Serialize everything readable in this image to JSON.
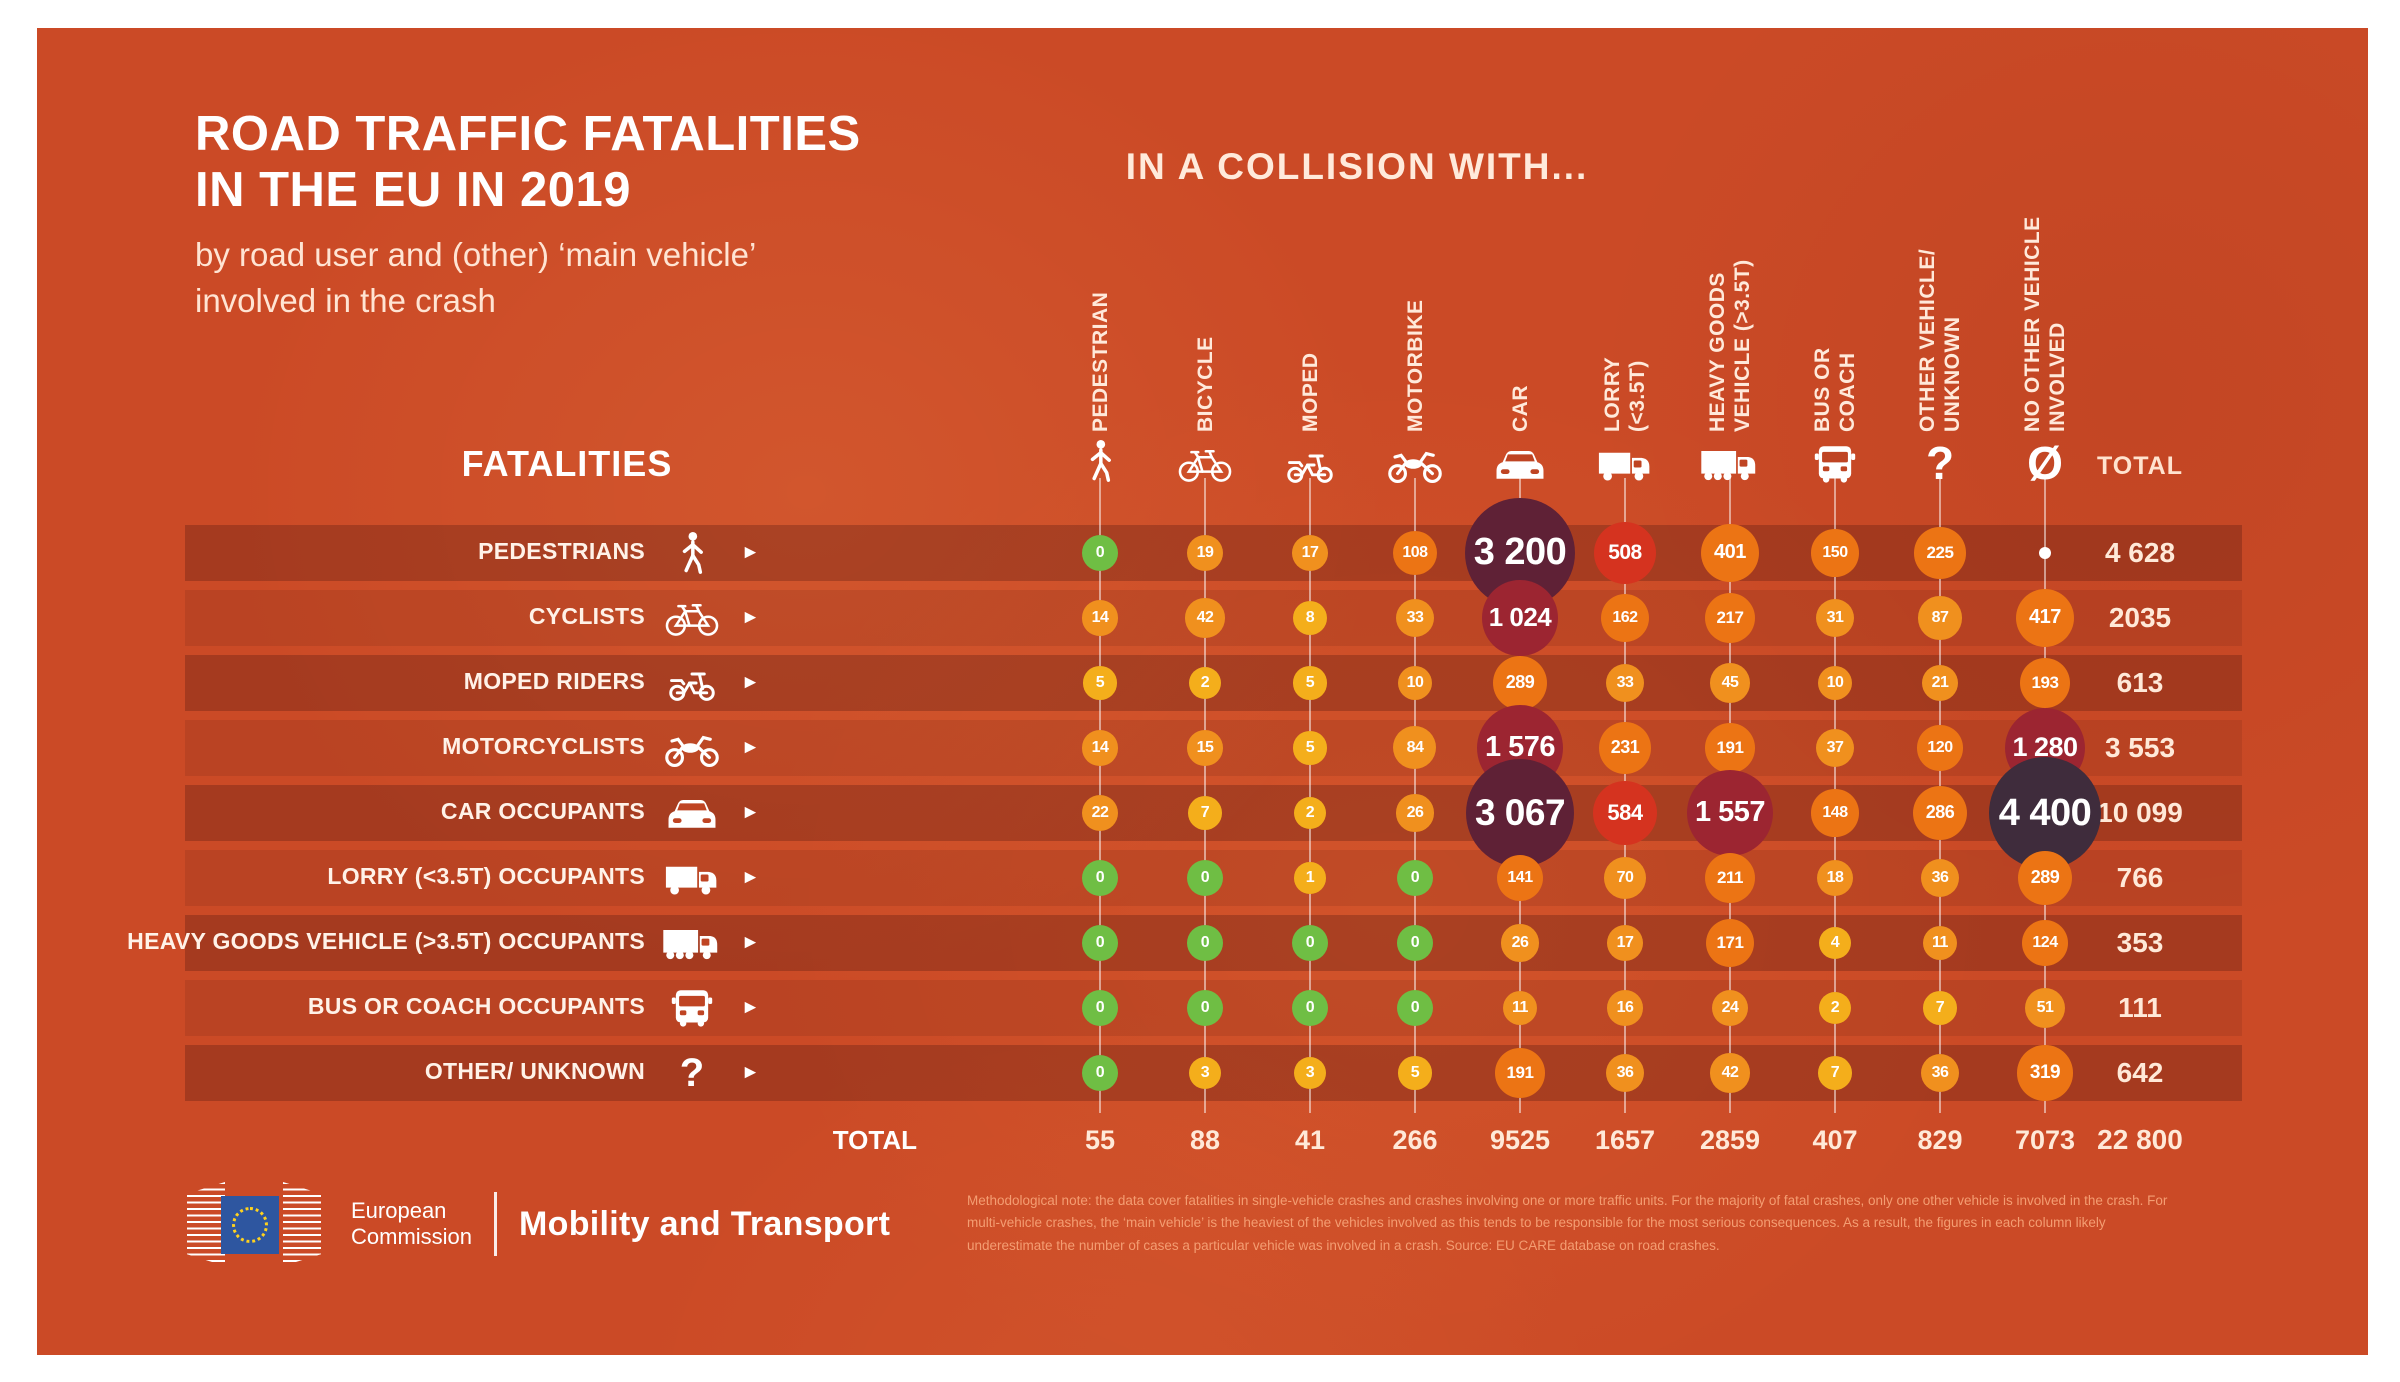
{
  "header": {
    "title_line1": "ROAD TRAFFIC FATALITIES",
    "title_line2": "IN THE EU IN 2019",
    "subtitle_line1": "by road user and (other) ‘main vehicle’",
    "subtitle_line2": "involved in the crash",
    "collision_label": "IN A COLLISION WITH...",
    "fatalities_label": "FATALITIES",
    "total_label": "TOTAL"
  },
  "chart_data": {
    "type": "heatmap",
    "variant": "bubble-matrix",
    "title": "Road traffic fatalities in the EU in 2019 by road user and (other) 'main vehicle' involved in the crash",
    "xlabel": "In a collision with...",
    "ylabel": "Fatalities",
    "columns": [
      {
        "label": "PEDESTRIAN",
        "icon": "pedestrian-icon"
      },
      {
        "label": "BICYCLE",
        "icon": "bicycle-icon"
      },
      {
        "label": "MOPED",
        "icon": "moped-icon"
      },
      {
        "label": "MOTORBIKE",
        "icon": "motorbike-icon"
      },
      {
        "label": "CAR",
        "icon": "car-icon"
      },
      {
        "label": "LORRY\n(<3.5T)",
        "icon": "lorry-icon"
      },
      {
        "label": "HEAVY GOODS\nVEHICLE (>3.5T)",
        "icon": "hgv-icon"
      },
      {
        "label": "BUS OR\nCOACH",
        "icon": "bus-icon"
      },
      {
        "label": "OTHER VEHICLE/\nUNKNOWN",
        "icon": "question-icon"
      },
      {
        "label": "NO OTHER VEHICLE\nINVOLVED",
        "icon": "no-other-icon"
      }
    ],
    "rows": [
      {
        "label": "PEDESTRIANS",
        "icon": "pedestrian-icon",
        "values": [
          "0",
          "19",
          "17",
          "108",
          "3 200",
          "508",
          "401",
          "150",
          "225",
          null
        ],
        "total": "4 628"
      },
      {
        "label": "CYCLISTS",
        "icon": "bicycle-icon",
        "values": [
          "14",
          "42",
          "8",
          "33",
          "1 024",
          "162",
          "217",
          "31",
          "87",
          "417"
        ],
        "total": "2035"
      },
      {
        "label": "MOPED RIDERS",
        "icon": "moped-icon",
        "values": [
          "5",
          "2",
          "5",
          "10",
          "289",
          "33",
          "45",
          "10",
          "21",
          "193"
        ],
        "total": "613"
      },
      {
        "label": "MOTORCYCLISTS",
        "icon": "motorbike-icon",
        "values": [
          "14",
          "15",
          "5",
          "84",
          "1 576",
          "231",
          "191",
          "37",
          "120",
          "1 280"
        ],
        "total": "3 553"
      },
      {
        "label": "CAR OCCUPANTS",
        "icon": "car-icon",
        "values": [
          "22",
          "7",
          "2",
          "26",
          "3 067",
          "584",
          "1 557",
          "148",
          "286",
          "4 400"
        ],
        "total": "10 099"
      },
      {
        "label": "LORRY (<3.5T)  OCCUPANTS",
        "icon": "lorry-icon",
        "values": [
          "0",
          "0",
          "1",
          "0",
          "141",
          "70",
          "211",
          "18",
          "36",
          "289"
        ],
        "total": "766"
      },
      {
        "label": "HEAVY GOODS VEHICLE (>3.5T)  OCCUPANTS",
        "icon": "hgv-icon",
        "values": [
          "0",
          "0",
          "0",
          "0",
          "26",
          "17",
          "171",
          "4",
          "11",
          "124"
        ],
        "total": "353"
      },
      {
        "label": "BUS OR COACH OCCUPANTS",
        "icon": "bus-icon",
        "values": [
          "0",
          "0",
          "0",
          "0",
          "11",
          "16",
          "24",
          "2",
          "7",
          "51"
        ],
        "total": "111"
      },
      {
        "label": "OTHER/ UNKNOWN",
        "icon": "question-icon",
        "values": [
          "0",
          "3",
          "3",
          "5",
          "191",
          "36",
          "42",
          "7",
          "36",
          "319"
        ],
        "total": "642"
      }
    ],
    "column_totals": [
      "55",
      "88",
      "41",
      "266",
      "9525",
      "1657",
      "2859",
      "407",
      "829",
      "7073"
    ],
    "grand_total": "22 800",
    "color_scale": [
      {
        "upto": 0,
        "color": "#6fbe44"
      },
      {
        "upto": 9,
        "color": "#f4ae1b"
      },
      {
        "upto": 99,
        "color": "#f0901e"
      },
      {
        "upto": 499,
        "color": "#ec7414"
      },
      {
        "upto": 999,
        "color": "#d5331f"
      },
      {
        "upto": 2999,
        "color": "#9c2531"
      },
      {
        "upto": 3999,
        "color": "#5f2136"
      },
      {
        "upto": 999999,
        "color": "#3f2c3c"
      }
    ],
    "background_color": "#cb4a26",
    "band_color_dark": "rgba(80,22,18,0.30)",
    "band_color_light": "rgba(80,22,18,0.13)",
    "legend_position": "none",
    "grid": false
  },
  "footer": {
    "logo_line1": "European",
    "logo_line2": "Commission",
    "division": "Mobility and Transport",
    "note": "Methodological note: the data cover fatalities  in single-vehicle crashes and crashes involving one or more traffic units. For the majority  of fatal  crashes, only one other vehicle is involved in the crash. For multi-vehicle  crashes, the ‘main  vehicle’ is the heaviest  of the vehicles involved as this tends to  be responsible for  the most  serious consequences. As a result, the figures  in each column likely underestimate  the number  of cases a particular  vehicle was involved in a crash. Source: EU CARE database on road crashes."
  }
}
